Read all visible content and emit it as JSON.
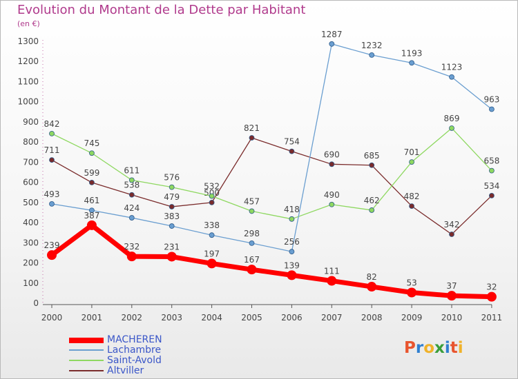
{
  "header": {
    "title": "Evolution du Montant de la Dette par Habitant",
    "subtitle": "(en €)"
  },
  "logo": {
    "text": "Proxiti",
    "letter_colors": [
      "#e8552e",
      "#2f7fd0",
      "#f0b22a",
      "#3a9e3a",
      "#2f7fd0",
      "#e8552e",
      "#f0b22a"
    ]
  },
  "chart_data": {
    "type": "line",
    "title": "Evolution du Montant de la Dette par Habitant",
    "subtitle": "(en €)",
    "categories": [
      "2000",
      "2001",
      "2002",
      "2003",
      "2004",
      "2005",
      "2006",
      "2007",
      "2008",
      "2009",
      "2010",
      "2011"
    ],
    "ylim": [
      0,
      1300
    ],
    "yticks": [
      0,
      100,
      200,
      300,
      400,
      500,
      600,
      700,
      800,
      900,
      1000,
      1100,
      1200,
      1300
    ],
    "grid": false,
    "legend_position": "bottom-left",
    "series": [
      {
        "name": "MACHEREN",
        "color": "#ff0000",
        "emphasis": true,
        "values": [
          239,
          387,
          232,
          231,
          197,
          167,
          139,
          111,
          82,
          53,
          37,
          32
        ]
      },
      {
        "name": "Lachambre",
        "color": "#6a9ed0",
        "values": [
          493,
          461,
          424,
          383,
          338,
          298,
          256,
          1287,
          1232,
          1193,
          1123,
          963
        ]
      },
      {
        "name": "Saint-Avold",
        "color": "#8ed860",
        "values": [
          842,
          745,
          611,
          576,
          532,
          457,
          418,
          490,
          462,
          701,
          869,
          658
        ]
      },
      {
        "name": "Altviller",
        "color": "#7a2b2b",
        "values": [
          711,
          599,
          538,
          479,
          500,
          821,
          754,
          690,
          685,
          482,
          342,
          534
        ]
      }
    ]
  }
}
